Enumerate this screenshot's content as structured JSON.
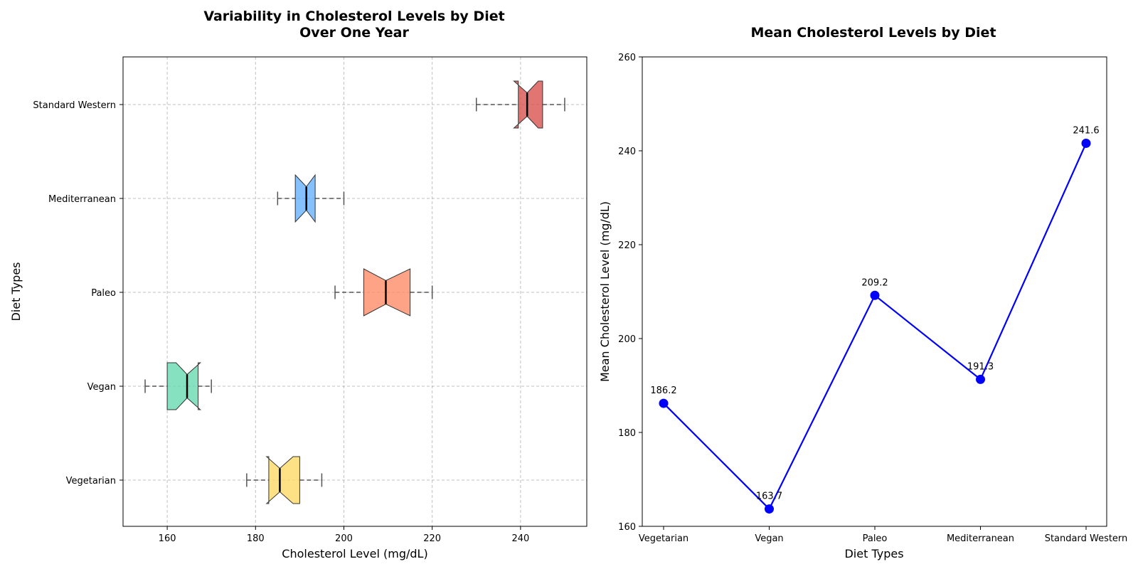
{
  "chart_data": [
    {
      "type": "boxplot",
      "title_lines": [
        "Variability in Cholesterol Levels by Diet",
        "Over One Year"
      ],
      "xlabel": "Cholesterol Level (mg/dL)",
      "ylabel": "Diet Types",
      "xlim": [
        150,
        255
      ],
      "xticks": [
        160,
        180,
        200,
        220,
        240
      ],
      "orientation": "horizontal",
      "notched": true,
      "grid": true,
      "categories": [
        "Vegetarian",
        "Vegan",
        "Paleo",
        "Mediterranean",
        "Standard Western"
      ],
      "boxes": [
        {
          "category": "Vegetarian",
          "whisker_low": 178,
          "q1": 183,
          "median": 185.5,
          "q3": 190,
          "whisker_high": 195,
          "notch_low": 182.5,
          "notch_high": 188.5,
          "color": "#FFD966"
        },
        {
          "category": "Vegan",
          "whisker_low": 155,
          "q1": 160,
          "median": 164.5,
          "q3": 167,
          "whisker_high": 170,
          "notch_low": 162,
          "notch_high": 167.5,
          "color": "#66D9B0"
        },
        {
          "category": "Paleo",
          "whisker_low": 198,
          "q1": 204.5,
          "median": 209.5,
          "q3": 215,
          "whisker_high": 220,
          "notch_low": 204.5,
          "notch_high": 215,
          "color": "#FF8C69"
        },
        {
          "category": "Mediterranean",
          "whisker_low": 185,
          "q1": 189,
          "median": 191.5,
          "q3": 193.5,
          "whisker_high": 200,
          "notch_low": 189,
          "notch_high": 193.5,
          "color": "#66B2FF"
        },
        {
          "category": "Standard Western",
          "whisker_low": 230,
          "q1": 239.5,
          "median": 241.5,
          "q3": 245,
          "whisker_high": 250,
          "notch_low": 238.5,
          "notch_high": 244,
          "color": "#D9534F"
        }
      ]
    },
    {
      "type": "line",
      "title": "Mean Cholesterol Levels by Diet",
      "xlabel": "Diet Types",
      "ylabel": "Mean Cholesterol Level (mg/dL)",
      "categories": [
        "Vegetarian",
        "Vegan",
        "Paleo",
        "Mediterranean",
        "Standard Western"
      ],
      "values": [
        186.2,
        163.7,
        209.2,
        191.3,
        241.6
      ],
      "value_labels": [
        "186.2",
        "163.7",
        "209.2",
        "191.3",
        "241.6"
      ],
      "ylim": [
        160,
        260
      ],
      "yticks": [
        160,
        180,
        200,
        220,
        240,
        260
      ],
      "grid": false,
      "color": "#0000FF"
    }
  ]
}
